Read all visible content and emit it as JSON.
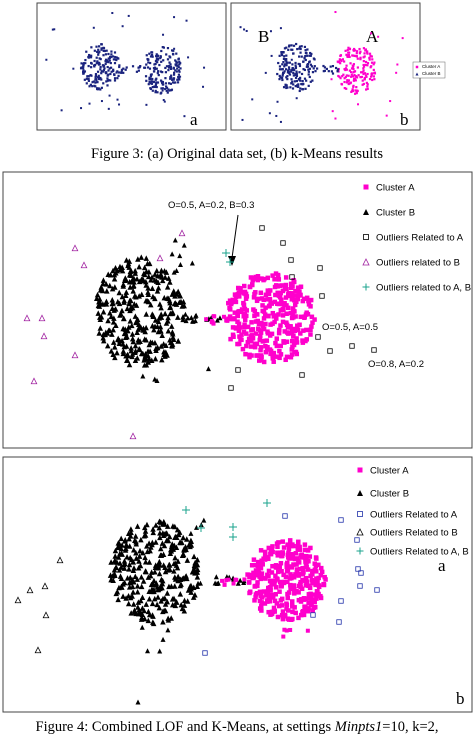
{
  "figure3": {
    "panel_a": {
      "label": "a"
    },
    "panel_b": {
      "label": "b",
      "cluster_b_label": "B",
      "cluster_a_label": "A",
      "legend": [
        "Cluster A",
        "Cluster B"
      ]
    },
    "caption": "Figure 3: (a) Original data set, (b) k-Means results"
  },
  "figure4": {
    "top_panel": {
      "legend": [
        "Cluster A",
        "Cluster B",
        "Outliers Related to A",
        "Outliers related to B",
        "Outliers related to A, B"
      ],
      "annotations": [
        "O=0.5, A=0.2, B=0.3",
        "O=0.5, A=0.5",
        "O=0.8, A=0.2"
      ]
    },
    "bottom_panel": {
      "legend": [
        "Cluster A",
        "Cluster B",
        "Outliers Related to A",
        "Outliers Related to B",
        "Outliers Related to A, B"
      ],
      "labels": [
        "a",
        "b"
      ]
    },
    "caption": {
      "prefix": "Figure 4: Combined LOF and K-Means, at settings ",
      "param": "Minpts1",
      "suffix": "=10, k=2,"
    }
  }
}
